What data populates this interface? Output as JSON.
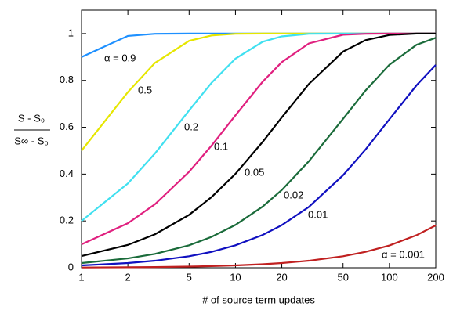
{
  "chart_data": {
    "type": "line",
    "x_label": "# of  source term updates",
    "y_label": {
      "numerator": "S - S₀",
      "denominator": "S∞ - S₀"
    },
    "x": [
      1,
      2,
      3,
      5,
      7,
      10,
      15,
      20,
      30,
      50,
      70,
      100,
      150,
      200
    ],
    "xscale": "log",
    "xlim": [
      1,
      200
    ],
    "xticks": [
      1,
      2,
      5,
      10,
      20,
      50,
      100,
      200
    ],
    "ylim": [
      0,
      1.1
    ],
    "yticks": [
      0,
      0.2,
      0.4,
      0.6,
      0.8,
      1
    ],
    "series": [
      {
        "name": "α = 0.9",
        "color": "#1e90ff",
        "values": [
          0.9,
          0.99,
          0.999,
          1,
          1,
          1,
          1,
          1,
          1,
          1,
          1,
          1,
          1,
          1
        ]
      },
      {
        "name": "0.5",
        "color": "#e6e600",
        "values": [
          0.5,
          0.75,
          0.875,
          0.969,
          0.992,
          0.999,
          1,
          1,
          1,
          1,
          1,
          1,
          1,
          1
        ]
      },
      {
        "name": "0.2",
        "color": "#40e0f0",
        "values": [
          0.2,
          0.36,
          0.488,
          0.672,
          0.79,
          0.893,
          0.965,
          0.988,
          0.999,
          1,
          1,
          1,
          1,
          1
        ]
      },
      {
        "name": "0.1",
        "color": "#e0207f",
        "values": [
          0.1,
          0.19,
          0.271,
          0.41,
          0.522,
          0.651,
          0.794,
          0.878,
          0.958,
          0.995,
          0.999,
          1,
          1,
          1
        ]
      },
      {
        "name": "0.05",
        "color": "#000000",
        "values": [
          0.05,
          0.0975,
          0.143,
          0.226,
          0.302,
          0.401,
          0.537,
          0.642,
          0.785,
          0.923,
          0.972,
          0.994,
          1,
          1
        ]
      },
      {
        "name": "0.02",
        "color": "#1a6b3a",
        "values": [
          0.02,
          0.04,
          0.059,
          0.096,
          0.132,
          0.183,
          0.261,
          0.332,
          0.455,
          0.636,
          0.757,
          0.867,
          0.952,
          0.982
        ]
      },
      {
        "name": "0.01",
        "color": "#1010c0",
        "values": [
          0.01,
          0.02,
          0.03,
          0.049,
          0.068,
          0.096,
          0.14,
          0.182,
          0.26,
          0.395,
          0.505,
          0.634,
          0.779,
          0.866
        ]
      },
      {
        "name": "α = 0.001",
        "color": "#c02020",
        "values": [
          0.001,
          0.002,
          0.003,
          0.005,
          0.007,
          0.01,
          0.015,
          0.02,
          0.03,
          0.049,
          0.068,
          0.095,
          0.139,
          0.181
        ]
      }
    ]
  }
}
